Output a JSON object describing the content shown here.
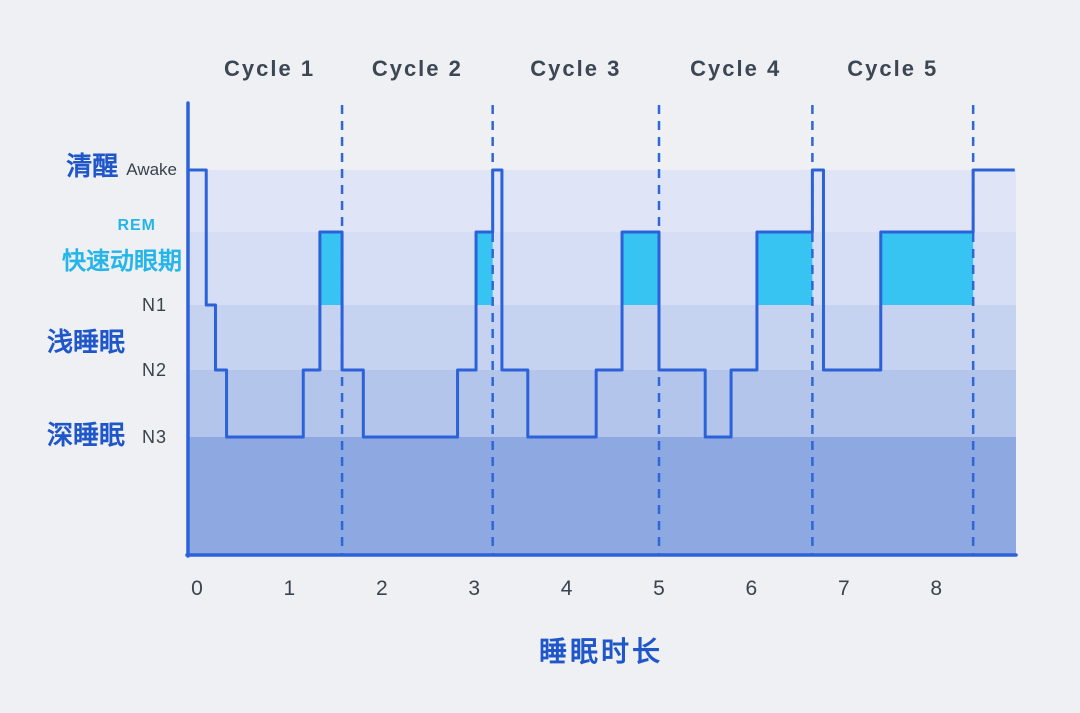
{
  "colors": {
    "background": "#eef0f3",
    "line": "#2c62d9",
    "axis": "#2c62d9",
    "boundary": "#2f66d8",
    "rem_fill": "#38c4f2",
    "label_blue": "#1f56c9",
    "label_cyan": "#25b5e9",
    "label_dark": "#3a434e",
    "bands": [
      "#dfe5f6",
      "#d5def4",
      "#c5d2f0",
      "#b4c5ec",
      "#8ea8e2"
    ]
  },
  "chart_data": {
    "type": "line",
    "subtype": "hypnogram-step",
    "title": "",
    "xlabel": "睡眠时长",
    "x_unit": "hours",
    "x_ticks": [
      0,
      1,
      2,
      3,
      4,
      5,
      6,
      7,
      8
    ],
    "x_range": [
      0,
      8.85
    ],
    "grid": "horizontal stage bands, dashed vertical cycle boundaries",
    "stage_levels": [
      "awake",
      "rem",
      "n1",
      "n2",
      "n3"
    ],
    "y_labels": {
      "awake_zh": "清醒",
      "awake_en": "Awake",
      "rem_en": "REM",
      "rem_zh": "快速动眼期",
      "n1": "N1",
      "light_zh": "浅睡眠",
      "n2": "N2",
      "deep_zh": "深睡眠",
      "n3": "N3"
    },
    "cycles": [
      {
        "label": "Cycle 1",
        "start": 0.0,
        "end": 1.57
      },
      {
        "label": "Cycle 2",
        "start": 1.57,
        "end": 3.2
      },
      {
        "label": "Cycle 3",
        "start": 3.2,
        "end": 5.0
      },
      {
        "label": "Cycle 4",
        "start": 5.0,
        "end": 6.66
      },
      {
        "label": "Cycle 5",
        "start": 6.66,
        "end": 8.4
      }
    ],
    "segments": [
      {
        "start": 0.0,
        "end": 0.1,
        "stage": "awake"
      },
      {
        "start": 0.1,
        "end": 0.2,
        "stage": "n1"
      },
      {
        "start": 0.2,
        "end": 0.32,
        "stage": "n2"
      },
      {
        "start": 0.32,
        "end": 1.15,
        "stage": "n3"
      },
      {
        "start": 1.15,
        "end": 1.33,
        "stage": "n2"
      },
      {
        "start": 1.33,
        "end": 1.57,
        "stage": "rem"
      },
      {
        "start": 1.57,
        "end": 1.8,
        "stage": "n2"
      },
      {
        "start": 1.8,
        "end": 2.82,
        "stage": "n3"
      },
      {
        "start": 2.82,
        "end": 3.02,
        "stage": "n2"
      },
      {
        "start": 3.02,
        "end": 3.2,
        "stage": "rem"
      },
      {
        "start": 3.2,
        "end": 3.3,
        "stage": "awake"
      },
      {
        "start": 3.3,
        "end": 3.58,
        "stage": "n2"
      },
      {
        "start": 3.58,
        "end": 4.32,
        "stage": "n3"
      },
      {
        "start": 4.32,
        "end": 4.6,
        "stage": "n2"
      },
      {
        "start": 4.6,
        "end": 5.0,
        "stage": "rem"
      },
      {
        "start": 5.0,
        "end": 5.5,
        "stage": "n2"
      },
      {
        "start": 5.5,
        "end": 5.78,
        "stage": "n3"
      },
      {
        "start": 5.78,
        "end": 6.06,
        "stage": "n2"
      },
      {
        "start": 6.06,
        "end": 6.66,
        "stage": "rem"
      },
      {
        "start": 6.66,
        "end": 6.78,
        "stage": "awake"
      },
      {
        "start": 6.78,
        "end": 7.4,
        "stage": "n2"
      },
      {
        "start": 7.4,
        "end": 8.4,
        "stage": "rem"
      },
      {
        "start": 8.4,
        "end": 8.85,
        "stage": "awake"
      }
    ]
  }
}
